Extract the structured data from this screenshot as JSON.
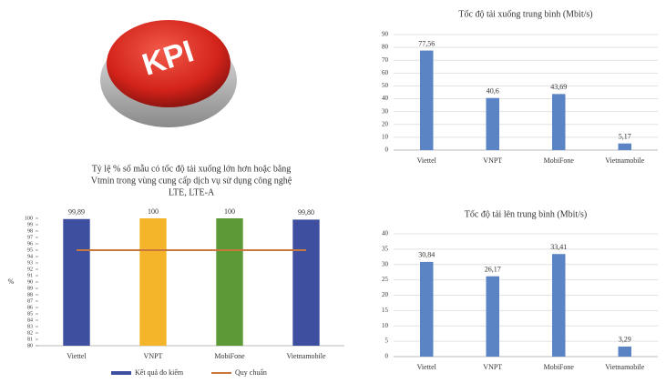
{
  "badge": {
    "label": "KPI"
  },
  "chart_data": [
    {
      "type": "bar",
      "title": "Tốc độ tải xuống trung bình (Mbit/s)",
      "categories": [
        "Viettel",
        "VNPT",
        "MobiFone",
        "Vietnamobile"
      ],
      "values": [
        77.56,
        40.6,
        43.69,
        5.17
      ],
      "value_labels": [
        "77,56",
        "40,6",
        "43,69",
        "5,17"
      ],
      "color": "#5b84c4",
      "ylim": [
        0,
        90
      ],
      "yticks": [
        0,
        10,
        20,
        30,
        40,
        50,
        60,
        70,
        80,
        90
      ],
      "grid": true
    },
    {
      "type": "bar",
      "title_lines": [
        "Tỷ lệ % số mẫu có tốc độ tải xuống lớn hơn hoặc bằng",
        "Vtmin trong vùng cung cấp dịch vụ sử dụng công nghệ",
        "LTE, LTE-A"
      ],
      "y_label": "%",
      "categories": [
        "Viettel",
        "VNPT",
        "MobiFone",
        "Vietnamobile"
      ],
      "series": [
        {
          "name": "Kết quả đo kiểm",
          "type": "bar",
          "color": "#3f4fa0",
          "colors": [
            "#3f4fa0",
            "#f5b52a",
            "#5c9a38",
            "#3f4fa0"
          ],
          "values": [
            99.89,
            100,
            100,
            99.8
          ],
          "value_labels": [
            "99,89",
            "100",
            "100",
            "99,80"
          ]
        },
        {
          "name": "Quy chuẩn",
          "type": "line",
          "color": "#c8783c",
          "values": [
            95,
            95,
            95,
            95
          ]
        }
      ],
      "ylim": [
        80,
        100
      ],
      "yticks": [
        80,
        81,
        82,
        83,
        84,
        85,
        86,
        87,
        88,
        89,
        90,
        91,
        92,
        93,
        94,
        95,
        96,
        97,
        98,
        99,
        100
      ],
      "grid": false
    },
    {
      "type": "bar",
      "title": "Tốc độ tải lên trung bình (Mbit/s)",
      "categories": [
        "Viettel",
        "VNPT",
        "MobiFone",
        "Vietnamobile"
      ],
      "values": [
        30.84,
        26.17,
        33.41,
        3.29
      ],
      "value_labels": [
        "30,84",
        "26,17",
        "33,41",
        "3,29"
      ],
      "color": "#5b84c4",
      "ylim": [
        0,
        40
      ],
      "yticks": [
        0,
        5,
        10,
        15,
        20,
        25,
        30,
        35,
        40
      ],
      "grid": true
    }
  ]
}
